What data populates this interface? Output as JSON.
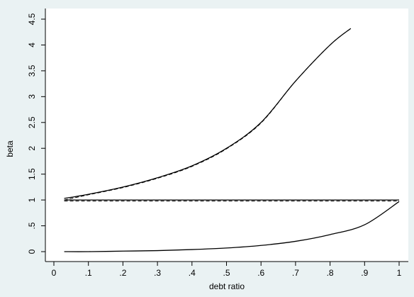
{
  "chart_data": {
    "type": "line",
    "xlabel": "debt ratio",
    "ylabel": "beta",
    "xlim": [
      0,
      1
    ],
    "ylim": [
      0,
      4.5
    ],
    "x_ticks": [
      0,
      0.1,
      0.2,
      0.3,
      0.4,
      0.5,
      0.6,
      0.7,
      0.8,
      0.9,
      1
    ],
    "x_tick_labels": [
      "0",
      ".1",
      ".2",
      ".3",
      ".4",
      ".5",
      ".6",
      ".7",
      ".8",
      ".9",
      "1"
    ],
    "y_ticks": [
      0,
      0.5,
      1,
      1.5,
      2,
      2.5,
      3,
      3.5,
      4,
      4.5
    ],
    "y_tick_labels": [
      "0",
      ".5",
      "1",
      "1.5",
      "2",
      "2.5",
      "3",
      "3.5",
      "4",
      "4.5"
    ],
    "grid": false,
    "series": [
      {
        "style": "solid",
        "x": [
          0.03,
          0.1,
          0.2,
          0.3,
          0.4,
          0.5,
          0.6,
          0.7,
          0.8,
          0.86
        ],
        "y": [
          1.03,
          1.11,
          1.25,
          1.43,
          1.66,
          2.0,
          2.5,
          3.3,
          4.0,
          4.32
        ]
      },
      {
        "style": "dashed",
        "x": [
          0.03,
          0.1,
          0.2,
          0.3,
          0.4,
          0.5,
          0.6,
          0.7,
          0.8,
          0.86
        ],
        "y": [
          1.0,
          1.1,
          1.24,
          1.42,
          1.65,
          1.99,
          2.49,
          3.3,
          4.0,
          4.32
        ]
      },
      {
        "style": "solid",
        "x": [
          0.03,
          0.2,
          0.4,
          0.6,
          0.8,
          1.0
        ],
        "y": [
          1.0,
          1.0,
          1.0,
          1.0,
          1.0,
          1.0
        ]
      },
      {
        "style": "dashed",
        "x": [
          0.03,
          0.2,
          0.4,
          0.6,
          0.8,
          1.0
        ],
        "y": [
          0.98,
          0.98,
          0.98,
          0.98,
          0.98,
          0.98
        ]
      },
      {
        "style": "solid",
        "x": [
          0.03,
          0.1,
          0.2,
          0.3,
          0.4,
          0.5,
          0.6,
          0.7,
          0.8,
          0.9,
          1.0
        ],
        "y": [
          0.0,
          0.0,
          0.01,
          0.02,
          0.04,
          0.07,
          0.12,
          0.2,
          0.33,
          0.52,
          0.97
        ]
      }
    ]
  }
}
